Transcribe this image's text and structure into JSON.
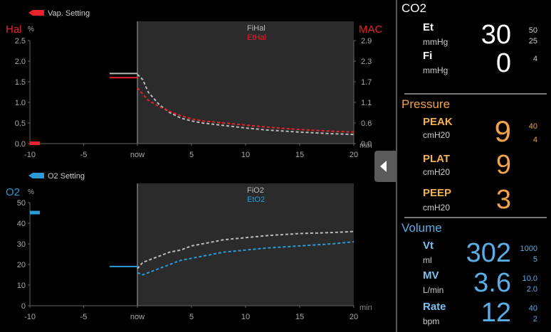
{
  "plots": [
    {
      "id": "hal",
      "setting_label": "Vap. Setting",
      "agent": "Hal",
      "unit": "%",
      "right_axis_label": "MAC",
      "y_ticks": [
        "2.5",
        "2.0",
        "1.5",
        "1.0",
        "0.5",
        "0.0"
      ],
      "y_right_ticks": [
        "2.9",
        "2.3",
        "1.7",
        "1.1",
        "0.6",
        "0.0"
      ],
      "x_ticks": [
        "-10",
        "-5",
        "now",
        "5",
        "10",
        "15",
        "20"
      ],
      "x_unit": "min",
      "legend": [
        "FiHal",
        "EtHal"
      ],
      "ylim": [
        0,
        2.5
      ],
      "colors": {
        "agent": "#e8232b",
        "fi": "#bbbbbb",
        "et": "#e8232b",
        "setting": "#e8232b"
      },
      "setting_value": 0.0,
      "history": {
        "fi": 1.7,
        "et": 1.6
      },
      "series": [
        {
          "name": "FiHal",
          "x": [
            0,
            0.5,
            1,
            2,
            3,
            4,
            5,
            6,
            8,
            10,
            12,
            15,
            18,
            20
          ],
          "y": [
            1.68,
            1.55,
            1.25,
            0.95,
            0.75,
            0.62,
            0.55,
            0.5,
            0.44,
            0.38,
            0.33,
            0.28,
            0.24,
            0.22
          ]
        },
        {
          "name": "EtHal",
          "x": [
            0,
            0.5,
            1,
            2,
            3,
            4,
            5,
            6,
            8,
            10,
            12,
            15,
            18,
            20
          ],
          "y": [
            1.35,
            1.2,
            1.05,
            0.9,
            0.78,
            0.68,
            0.6,
            0.55,
            0.5,
            0.45,
            0.4,
            0.34,
            0.3,
            0.28
          ]
        }
      ]
    },
    {
      "id": "o2",
      "setting_label": "O2 Setting",
      "agent": "O2",
      "unit": "%",
      "right_axis_label": "",
      "y_ticks": [
        "50",
        "40",
        "30",
        "20",
        "10",
        "0"
      ],
      "y_right_ticks": [],
      "x_ticks": [
        "-10",
        "-5",
        "now",
        "5",
        "10",
        "15",
        "20"
      ],
      "x_unit": "min",
      "legend": [
        "FiO2",
        "EtO2"
      ],
      "ylim": [
        0,
        50
      ],
      "colors": {
        "agent": "#2a9ad8",
        "fi": "#bbbbbb",
        "et": "#2a9ad8",
        "setting": "#2a9ad8"
      },
      "setting_value": 45,
      "history": {
        "fi": 19,
        "et": 19
      },
      "series": [
        {
          "name": "FiO2",
          "x": [
            0,
            0.5,
            1,
            2,
            3,
            4,
            5,
            6,
            8,
            10,
            12,
            15,
            18,
            20
          ],
          "y": [
            18,
            21,
            22,
            24,
            26,
            27,
            29,
            30,
            32,
            33,
            34,
            35,
            35.5,
            36
          ]
        },
        {
          "name": "EtO2",
          "x": [
            0,
            0.5,
            1,
            2,
            3,
            4,
            5,
            6,
            8,
            10,
            12,
            15,
            18,
            20
          ],
          "y": [
            16,
            15,
            16,
            18,
            20,
            22,
            23,
            24,
            26,
            27,
            28,
            29,
            30,
            31
          ]
        }
      ]
    }
  ],
  "right_panel": {
    "co2": {
      "title": "CO2",
      "rows": [
        {
          "label": "Et",
          "unit": "mmHg",
          "value": "30",
          "limits": [
            "50",
            "25"
          ]
        },
        {
          "label": "Fi",
          "unit": "mmHg",
          "value": "0",
          "limits": [
            "4",
            ""
          ]
        }
      ]
    },
    "pressure": {
      "title": "Pressure",
      "rows": [
        {
          "label": "PEAK",
          "unit": "cmH20",
          "value": "9",
          "limits": [
            "40",
            "4"
          ]
        },
        {
          "label": "PLAT",
          "unit": "cmH20",
          "value": "9",
          "limits": [
            "",
            ""
          ]
        },
        {
          "label": "PEEP",
          "unit": "cmH20",
          "value": "3",
          "limits": [
            "",
            ""
          ]
        }
      ]
    },
    "volume": {
      "title": "Volume",
      "rows": [
        {
          "label": "Vt",
          "unit": "ml",
          "value": "302",
          "limits": [
            "1000",
            "5"
          ]
        },
        {
          "label": "MV",
          "unit": "L/min",
          "value": "3.6",
          "limits": [
            "10.0",
            "2.0"
          ]
        },
        {
          "label": "Rate",
          "unit": "bpm",
          "value": "12",
          "limits": [
            "40",
            "2"
          ]
        }
      ]
    },
    "colors": {
      "co2": "#ffffff",
      "pressure": "#f2a24a",
      "volume": "#5aaee8",
      "label_pressure": "#f6b24a",
      "label_volume": "#7cc0f0"
    }
  }
}
